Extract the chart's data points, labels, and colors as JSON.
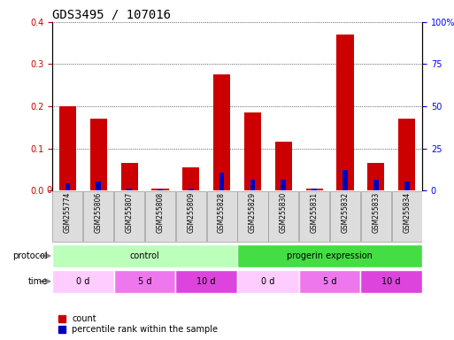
{
  "title": "GDS3495 / 107016",
  "samples": [
    "GSM255774",
    "GSM255806",
    "GSM255807",
    "GSM255808",
    "GSM255809",
    "GSM255828",
    "GSM255829",
    "GSM255830",
    "GSM255831",
    "GSM255832",
    "GSM255833",
    "GSM255834"
  ],
  "count_values": [
    0.2,
    0.17,
    0.065,
    0.005,
    0.055,
    0.275,
    0.185,
    0.115,
    0.005,
    0.37,
    0.065,
    0.17
  ],
  "percentile_values": [
    0.04,
    0.055,
    0.01,
    0.005,
    0.01,
    0.105,
    0.065,
    0.065,
    0.01,
    0.12,
    0.065,
    0.055
  ],
  "bar_width": 0.55,
  "ylim_left": [
    0,
    0.4
  ],
  "ylim_right": [
    0,
    100
  ],
  "yticks_left": [
    0,
    0.1,
    0.2,
    0.3,
    0.4
  ],
  "yticks_right": [
    0,
    25,
    50,
    75,
    100
  ],
  "ytick_labels_right": [
    "0",
    "25",
    "50",
    "75",
    "100%"
  ],
  "count_color": "#cc0000",
  "percentile_color": "#0000bb",
  "protocol_color_light": "#bbffbb",
  "protocol_color_bright": "#44dd44",
  "time_color_0d": "#ffccff",
  "time_color_5d": "#ee77ee",
  "time_color_10d": "#dd44dd",
  "sample_box_color": "#dddddd",
  "title_fontsize": 10,
  "tick_fontsize": 7,
  "label_fontsize": 8,
  "legend_fontsize": 7
}
